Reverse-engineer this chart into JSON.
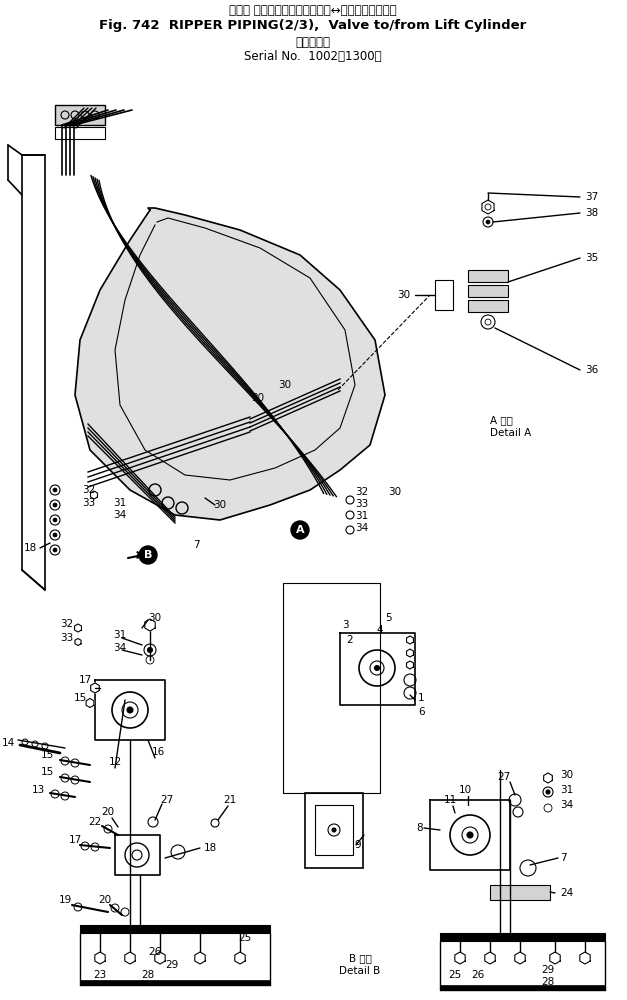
{
  "title_line1": "リッパ パイピング　　バルブ　↔　リフトシリンダ",
  "title_line2": "Fig. 742  RIPPER PIPING(2/3),  Valve to/from Lift Cylinder",
  "title_line3_a": "（適用号機",
  "title_line3_b": "Serial No.  1002～1300）",
  "bg_color": "#ffffff",
  "detail_a_jp": "A 詳画",
  "detail_a_en": "Detail A",
  "detail_b_jp": "B 詳画",
  "detail_b_en": "Detail B",
  "figsize": [
    6.27,
    10.0
  ],
  "dpi": 100
}
